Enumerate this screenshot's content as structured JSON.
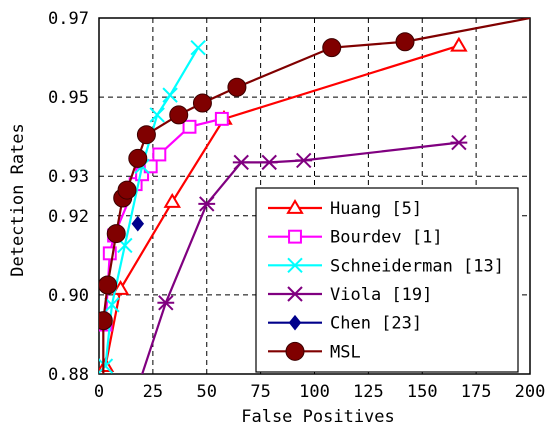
{
  "chart_data": {
    "type": "line",
    "xlabel": "False Positives",
    "ylabel": "Detection Rates",
    "xlim": [
      0,
      200
    ],
    "ylim": [
      0.88,
      0.97
    ],
    "xticks": [
      0,
      25,
      50,
      75,
      100,
      125,
      150,
      175,
      200
    ],
    "yticks": [
      0.88,
      0.9,
      0.92,
      0.93,
      0.95,
      0.97
    ],
    "ytick_labels": [
      "0.88",
      "0.90",
      "0.92",
      "0.93",
      "0.95",
      "0.97"
    ],
    "grid": true,
    "legend_position": "lower-right",
    "series": [
      {
        "name": "Huang [5]",
        "color": "#ff0000",
        "marker": "triangle",
        "x": [
          3,
          10,
          34,
          58,
          167
        ],
        "y": [
          0.882,
          0.9015,
          0.9235,
          0.9445,
          0.963
        ]
      },
      {
        "name": "Bourdev [1]",
        "color": "#ff00ff",
        "marker": "square",
        "x": [
          3,
          5,
          7,
          17,
          20,
          24,
          28,
          42,
          57
        ],
        "y": [
          0.8925,
          0.9105,
          0.915,
          0.928,
          0.9305,
          0.9325,
          0.9355,
          0.9425,
          0.9445
        ]
      },
      {
        "name": "Schneiderman [13]",
        "color": "#00ffff",
        "marker": "x",
        "x": [
          3,
          6,
          12,
          20,
          27,
          33,
          46
        ],
        "y": [
          0.882,
          0.8975,
          0.9125,
          0.9325,
          0.9455,
          0.9505,
          0.9625
        ]
      },
      {
        "name": "Viola [19]",
        "color": "#800080",
        "marker": "asterisk",
        "x": [
          17,
          31,
          50,
          66,
          79,
          95,
          167
        ],
        "y": [
          0.875,
          0.898,
          0.923,
          0.9335,
          0.9335,
          0.934,
          0.9385
        ]
      },
      {
        "name": "Chen [23]",
        "color": "#00008b",
        "marker": "diamond",
        "x": [
          18
        ],
        "y": [
          0.918
        ]
      },
      {
        "name": "MSL",
        "color": "#800000",
        "marker": "circle",
        "x": [
          2,
          2,
          4,
          8,
          11,
          13,
          18,
          22,
          37,
          48,
          64,
          108,
          142,
          205
        ],
        "y": [
          0.875,
          0.8935,
          0.9025,
          0.9155,
          0.9245,
          0.9265,
          0.9345,
          0.9405,
          0.9455,
          0.9485,
          0.9525,
          0.9625,
          0.964,
          0.9705
        ]
      }
    ]
  }
}
